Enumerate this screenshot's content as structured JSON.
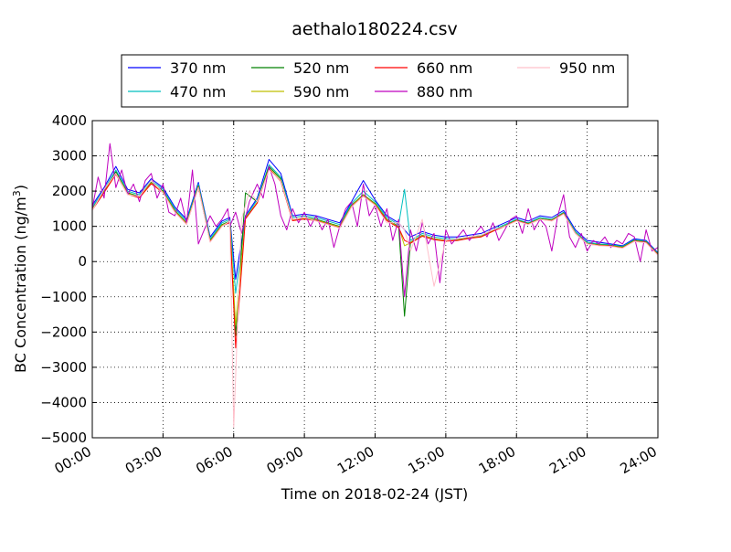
{
  "chart_data": {
    "type": "line",
    "title": "aethalo180224.csv",
    "xlabel": "Time on 2018-02-24 (JST)",
    "ylabel_prefix": "BC Concentration (ng/m",
    "ylabel_sup": "3",
    "ylabel_suffix": ")",
    "xlim": [
      "00:00",
      "24:00"
    ],
    "ylim": [
      -5000,
      4000
    ],
    "grid": true,
    "legend_position": "top, above plot",
    "x_ticks": [
      "00:00",
      "03:00",
      "06:00",
      "09:00",
      "12:00",
      "15:00",
      "18:00",
      "21:00",
      "24:00"
    ],
    "y_ticks": [
      "4000",
      "3000",
      "2000",
      "1000",
      "0",
      "−1000",
      "−2000",
      "−3000",
      "−4000",
      "−5000"
    ],
    "series": [
      {
        "name": "370 nm",
        "color": "#0000ff",
        "x": [
          "00:00",
          "00:30",
          "01:00",
          "01:30",
          "02:00",
          "02:30",
          "03:00",
          "03:30",
          "04:00",
          "04:30",
          "05:00",
          "05:30",
          "05:50",
          "06:05",
          "06:30",
          "07:00",
          "07:30",
          "08:00",
          "08:30",
          "09:00",
          "09:30",
          "10:00",
          "10:30",
          "11:00",
          "11:30",
          "12:00",
          "12:30",
          "13:00",
          "13:15",
          "13:30",
          "14:00",
          "14:30",
          "15:00",
          "15:30",
          "16:00",
          "16:30",
          "17:00",
          "17:30",
          "18:00",
          "18:30",
          "19:00",
          "19:30",
          "20:00",
          "20:30",
          "21:00",
          "21:30",
          "22:00",
          "22:30",
          "23:00",
          "23:30",
          "24:00"
        ],
        "y": [
          1600,
          2100,
          2700,
          2050,
          1950,
          2350,
          2100,
          1550,
          1200,
          2250,
          700,
          1150,
          1250,
          -500,
          1300,
          1800,
          2900,
          2500,
          1300,
          1350,
          1300,
          1200,
          1100,
          1700,
          2300,
          1750,
          1300,
          1100,
          900,
          700,
          850,
          750,
          700,
          700,
          750,
          800,
          950,
          1100,
          1250,
          1150,
          1300,
          1250,
          1450,
          900,
          600,
          550,
          500,
          450,
          650,
          600,
          250
        ]
      },
      {
        "name": "470 nm",
        "color": "#00bfbf",
        "x": [
          "00:00",
          "00:30",
          "01:00",
          "01:30",
          "02:00",
          "02:30",
          "03:00",
          "03:30",
          "04:00",
          "04:30",
          "05:00",
          "05:30",
          "05:50",
          "06:05",
          "06:30",
          "07:00",
          "07:30",
          "08:00",
          "08:30",
          "09:00",
          "09:30",
          "10:00",
          "10:30",
          "11:00",
          "11:30",
          "12:00",
          "12:30",
          "13:00",
          "13:15",
          "13:30",
          "14:00",
          "14:30",
          "15:00",
          "15:30",
          "16:00",
          "16:30",
          "17:00",
          "17:30",
          "18:00",
          "18:30",
          "19:00",
          "19:30",
          "20:00",
          "20:30",
          "21:00",
          "21:30",
          "22:00",
          "22:30",
          "23:00",
          "23:30",
          "24:00"
        ],
        "y": [
          1550,
          2050,
          2600,
          2000,
          1900,
          2300,
          2050,
          1500,
          1150,
          2200,
          650,
          1100,
          1200,
          -900,
          1250,
          1750,
          2750,
          2400,
          1250,
          1300,
          1250,
          1150,
          1050,
          1650,
          2000,
          1700,
          1250,
          1050,
          2050,
          600,
          800,
          700,
          650,
          650,
          700,
          750,
          900,
          1050,
          1200,
          1100,
          1250,
          1200,
          1400,
          850,
          550,
          500,
          480,
          430,
          620,
          580,
          230
        ]
      },
      {
        "name": "520 nm",
        "color": "#008000",
        "x": [
          "00:00",
          "00:30",
          "01:00",
          "01:30",
          "02:00",
          "02:30",
          "03:00",
          "03:30",
          "04:00",
          "04:30",
          "05:00",
          "05:30",
          "05:50",
          "06:05",
          "06:30",
          "07:00",
          "07:30",
          "08:00",
          "08:30",
          "09:00",
          "09:30",
          "10:00",
          "10:30",
          "11:00",
          "11:30",
          "12:00",
          "12:30",
          "13:00",
          "13:15",
          "13:30",
          "14:00",
          "14:30",
          "15:00",
          "15:30",
          "16:00",
          "16:30",
          "17:00",
          "17:30",
          "18:00",
          "18:30",
          "19:00",
          "19:30",
          "20:00",
          "20:30",
          "21:00",
          "21:30",
          "22:00",
          "22:30",
          "23:00",
          "23:30",
          "24:00"
        ],
        "y": [
          1500,
          2000,
          2550,
          1950,
          1850,
          2250,
          2000,
          1450,
          1100,
          2150,
          600,
          1050,
          1150,
          -2100,
          1950,
          1700,
          2700,
          2350,
          1200,
          1250,
          1200,
          1100,
          1000,
          1600,
          1900,
          1650,
          1200,
          1000,
          -1550,
          550,
          750,
          650,
          600,
          620,
          680,
          720,
          880,
          1020,
          1180,
          1080,
          1220,
          1180,
          1380,
          820,
          520,
          480,
          460,
          410,
          600,
          560,
          210
        ]
      },
      {
        "name": "590 nm",
        "color": "#bfbf00",
        "x": [
          "00:00",
          "00:30",
          "01:00",
          "01:30",
          "02:00",
          "02:30",
          "03:00",
          "03:30",
          "04:00",
          "04:30",
          "05:00",
          "05:30",
          "05:50",
          "06:05",
          "06:30",
          "07:00",
          "07:30",
          "08:00",
          "08:30",
          "09:00",
          "09:30",
          "10:00",
          "10:30",
          "11:00",
          "11:30",
          "12:00",
          "12:30",
          "13:00",
          "13:15",
          "13:30",
          "14:00",
          "14:30",
          "15:00",
          "15:30",
          "16:00",
          "16:30",
          "17:00",
          "17:30",
          "18:00",
          "18:30",
          "19:00",
          "19:30",
          "20:00",
          "20:30",
          "21:00",
          "21:30",
          "22:00",
          "22:30",
          "23:00",
          "23:30",
          "24:00"
        ],
        "y": [
          1480,
          1980,
          2500,
          1930,
          1830,
          2230,
          1980,
          1430,
          1080,
          2130,
          580,
          1030,
          1130,
          -1800,
          1230,
          1680,
          2650,
          2300,
          1180,
          1230,
          1180,
          1080,
          980,
          1580,
          1880,
          1630,
          1180,
          980,
          450,
          540,
          740,
          640,
          600,
          610,
          670,
          710,
          870,
          1010,
          1170,
          1070,
          1210,
          1170,
          1370,
          810,
          510,
          470,
          450,
          400,
          590,
          550,
          200
        ]
      },
      {
        "name": "660 nm",
        "color": "#ff0000",
        "x": [
          "00:00",
          "00:30",
          "01:00",
          "01:30",
          "02:00",
          "02:30",
          "03:00",
          "03:30",
          "04:00",
          "04:30",
          "05:00",
          "05:30",
          "05:50",
          "06:05",
          "06:30",
          "07:00",
          "07:30",
          "08:00",
          "08:30",
          "09:00",
          "09:30",
          "10:00",
          "10:30",
          "11:00",
          "11:30",
          "12:00",
          "12:30",
          "13:00",
          "13:15",
          "13:30",
          "14:00",
          "14:30",
          "15:00",
          "15:30",
          "16:00",
          "16:30",
          "17:00",
          "17:30",
          "18:00",
          "18:30",
          "19:00",
          "19:30",
          "20:00",
          "20:30",
          "21:00",
          "21:30",
          "22:00",
          "22:30",
          "23:00",
          "23:30",
          "24:00"
        ],
        "y": [
          1460,
          1960,
          2480,
          1910,
          1810,
          2210,
          1960,
          1410,
          1060,
          2110,
          560,
          1010,
          1110,
          -2450,
          1210,
          1660,
          2630,
          2280,
          1160,
          1210,
          1160,
          1060,
          960,
          1560,
          1860,
          1610,
          1160,
          960,
          600,
          520,
          720,
          620,
          580,
          600,
          660,
          700,
          860,
          1000,
          1160,
          1060,
          1200,
          1160,
          1360,
          800,
          500,
          460,
          440,
          390,
          580,
          540,
          190
        ]
      },
      {
        "name": "880 nm",
        "color": "#bf00bf",
        "x": [
          "00:00",
          "00:15",
          "00:30",
          "00:45",
          "01:00",
          "01:15",
          "01:30",
          "01:45",
          "02:00",
          "02:15",
          "02:30",
          "02:45",
          "03:00",
          "03:15",
          "03:30",
          "03:45",
          "04:00",
          "04:15",
          "04:30",
          "04:45",
          "05:00",
          "05:15",
          "05:30",
          "05:45",
          "05:50",
          "06:05",
          "06:20",
          "06:40",
          "07:00",
          "07:15",
          "07:30",
          "07:45",
          "08:00",
          "08:15",
          "08:30",
          "08:45",
          "09:00",
          "09:15",
          "09:30",
          "09:45",
          "10:00",
          "10:15",
          "10:30",
          "10:45",
          "11:00",
          "11:15",
          "11:30",
          "11:45",
          "12:00",
          "12:15",
          "12:30",
          "12:45",
          "13:00",
          "13:15",
          "13:30",
          "13:45",
          "14:00",
          "14:15",
          "14:30",
          "14:45",
          "15:00",
          "15:15",
          "15:30",
          "15:45",
          "16:00",
          "16:15",
          "16:30",
          "16:45",
          "17:00",
          "17:15",
          "17:30",
          "17:45",
          "18:00",
          "18:15",
          "18:30",
          "18:45",
          "19:00",
          "19:15",
          "19:30",
          "19:45",
          "20:00",
          "20:15",
          "20:30",
          "20:45",
          "21:00",
          "21:15",
          "21:30",
          "21:45",
          "22:00",
          "22:15",
          "22:30",
          "22:45",
          "23:00",
          "23:15",
          "23:30",
          "23:45",
          "24:00"
        ],
        "y": [
          1500,
          2400,
          1800,
          3350,
          2100,
          2600,
          1900,
          2200,
          1700,
          2300,
          2500,
          1800,
          2200,
          1400,
          1300,
          1800,
          1100,
          2600,
          500,
          900,
          1300,
          1000,
          1200,
          1500,
          1000,
          1400,
          800,
          1700,
          2200,
          1800,
          2700,
          2200,
          1300,
          900,
          1500,
          1100,
          1400,
          1000,
          1300,
          900,
          1200,
          400,
          1000,
          1500,
          1700,
          1000,
          2200,
          1300,
          1600,
          1000,
          1500,
          600,
          1200,
          -1000,
          900,
          300,
          1100,
          500,
          800,
          -600,
          900,
          500,
          700,
          900,
          600,
          800,
          1000,
          700,
          1100,
          600,
          900,
          1200,
          1300,
          800,
          1500,
          900,
          1200,
          1000,
          300,
          1300,
          1900,
          700,
          400,
          800,
          300,
          600,
          500,
          700,
          400,
          600,
          500,
          800,
          700,
          0,
          900,
          300,
          400
        ]
      },
      {
        "name": "950 nm",
        "color": "#ffc0cb",
        "x": [
          "00:00",
          "00:30",
          "01:00",
          "01:30",
          "02:00",
          "02:30",
          "03:00",
          "03:30",
          "04:00",
          "04:30",
          "05:00",
          "05:30",
          "05:50",
          "06:00",
          "06:20",
          "06:40",
          "07:00",
          "07:30",
          "08:00",
          "08:30",
          "09:00",
          "09:30",
          "10:00",
          "10:30",
          "11:00",
          "11:30",
          "12:00",
          "12:30",
          "13:00",
          "13:15",
          "13:30",
          "14:00",
          "14:30",
          "15:00",
          "15:30",
          "16:00",
          "16:30",
          "17:00",
          "17:30",
          "18:00",
          "18:30",
          "19:00",
          "19:30",
          "20:00",
          "20:30",
          "21:00",
          "21:30",
          "22:00",
          "22:30",
          "23:00",
          "23:30",
          "24:00"
        ],
        "y": [
          1450,
          2050,
          2500,
          1900,
          1850,
          2300,
          1950,
          1400,
          1050,
          2100,
          550,
          1000,
          1150,
          -4700,
          1200,
          2000,
          1700,
          2600,
          2300,
          1200,
          1250,
          1150,
          1050,
          950,
          1550,
          1850,
          1600,
          1100,
          1100,
          900,
          300,
          1200,
          -700,
          600,
          650,
          700,
          750,
          900,
          1000,
          1150,
          1050,
          1200,
          1150,
          1350,
          800,
          500,
          450,
          430,
          380,
          570,
          530,
          180
        ]
      }
    ]
  }
}
